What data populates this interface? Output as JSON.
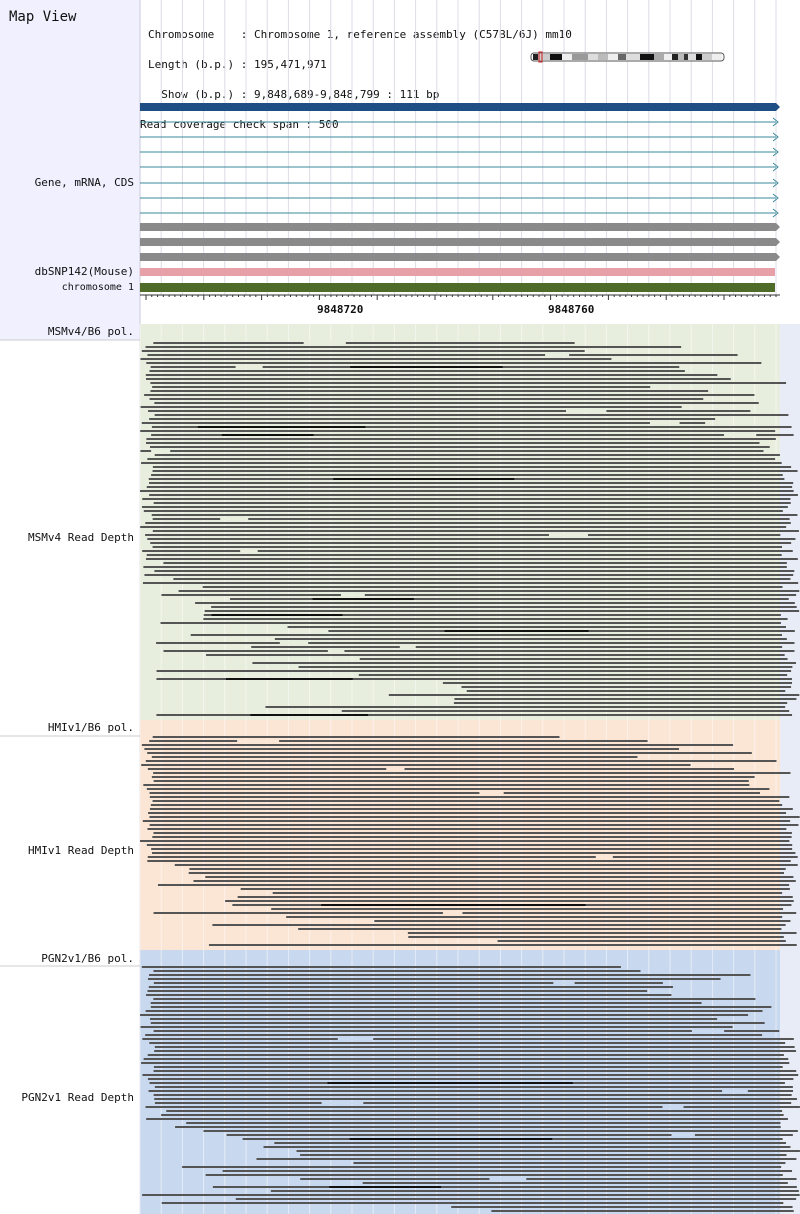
{
  "window": {
    "title": "Map View"
  },
  "header": {
    "lines": [
      "Chromosome    : Chromosome 1, reference assembly (C57BL/6J) mm10",
      "Length (b.p.) : 195,471,971",
      "  Show (b.p.) : 9,848,689-9,848,799 : 111 bp",
      "Read coverage check span : 500"
    ]
  },
  "tracks": {
    "gene": "Gene, mRNA, CDS",
    "snp": "dbSNP142(Mouse)",
    "chromosome": "chromosome 1",
    "msm_pol": "MSMv4/B6 pol.",
    "msm_depth": "MSMv4 Read Depth",
    "hmi_pol": "HMIv1/B6 pol.",
    "hmi_depth": "HMIv1 Read Depth",
    "pgn_pol": "PGN2v1/B6 pol.",
    "pgn_depth": "PGN2v1 Read Depth"
  },
  "ruler": {
    "ticks": [
      "9848720",
      "9848760"
    ]
  },
  "colors": {
    "gene_main": "#1f4e85",
    "mrna_line": "#3a8a9a",
    "cds_gray": "#8a8a8a",
    "snp": "#e8a0a8",
    "chromosome": "#4e6b2a",
    "msm_bg": "#e8eedd",
    "hmi_bg": "#fbe5d5",
    "pgn_bg": "#c8d8ee",
    "read": "#555555"
  },
  "icons": [
    "chromosome-ideogram-icon",
    "arrow-right-icon"
  ]
}
